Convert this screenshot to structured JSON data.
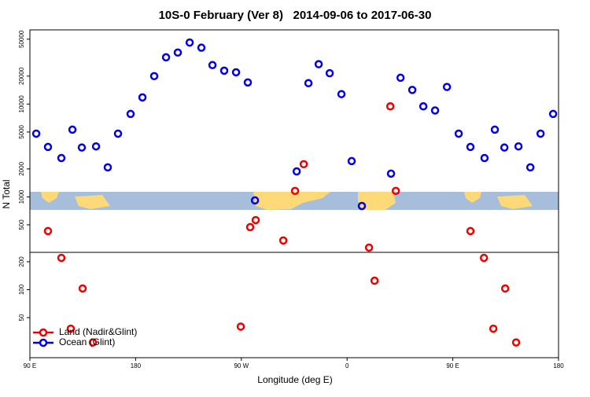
{
  "chart_data": {
    "type": "scatter",
    "title": "10S-0 February (Ver 8)   2014-09-06 to 2017-06-30",
    "x_label": "Longitude (deg E)",
    "y_label": "N Total",
    "xlim": [
      90,
      540
    ],
    "xticks": [
      {
        "value": 90,
        "label": "90 E"
      },
      {
        "value": 180,
        "label": "180"
      },
      {
        "value": 270,
        "label": "90 W"
      },
      {
        "value": 360,
        "label": "0"
      },
      {
        "value": 450,
        "label": "90 E"
      },
      {
        "value": 540,
        "label": "180"
      }
    ],
    "ylim": [
      18.5,
      63000
    ],
    "ylog": true,
    "yticks": [
      50,
      100,
      200,
      500,
      1000,
      2000,
      5000,
      10000,
      20000,
      50000
    ],
    "legend": "bottom-left",
    "series": [
      {
        "name": "Land (Nadir&Glint)",
        "color": "#ee0000",
        "x": [
          105.4,
          116.8,
          124.8,
          134.9,
          143.6,
          269.5,
          277.5,
          282.2,
          305.7,
          315.7,
          323.1,
          378.7,
          383.4,
          396.8,
          401.5,
          465,
          476.5,
          484.5,
          494.6,
          503.9
        ],
        "values": [
          428,
          220,
          38,
          103,
          27,
          40,
          472,
          562,
          339,
          1160,
          2250,
          284,
          125,
          9450,
          1160,
          428,
          220,
          38,
          103,
          27
        ]
      },
      {
        "name": "Ocean (Glint)",
        "color": "#0000ee",
        "x": [
          95.4,
          105.4,
          116.8,
          126.2,
          134.2,
          146.3,
          156.3,
          165,
          175.7,
          185.8,
          195.8,
          205.9,
          215.9,
          226,
          236,
          245.4,
          255.4,
          265.5,
          275.5,
          281.6,
          317.1,
          327.1,
          335.8,
          345.2,
          355.2,
          363.9,
          372.6,
          397.4,
          405.5,
          415.5,
          424.9,
          434.9,
          445,
          455,
          465,
          477,
          485.8,
          493.9,
          505.9,
          516,
          524.7,
          535.4
        ],
        "values": [
          4800,
          3450,
          2620,
          5300,
          3400,
          3500,
          2080,
          4800,
          7830,
          11800,
          20000,
          31900,
          35900,
          46000,
          40500,
          26300,
          22900,
          22000,
          17100,
          916,
          1880,
          16800,
          26900,
          21500,
          12800,
          2430,
          798,
          1780,
          19200,
          14200,
          9450,
          8530,
          15300,
          4800,
          3450,
          2620,
          5300,
          3400,
          3500,
          2080,
          4800,
          7830
        ]
      }
    ]
  }
}
